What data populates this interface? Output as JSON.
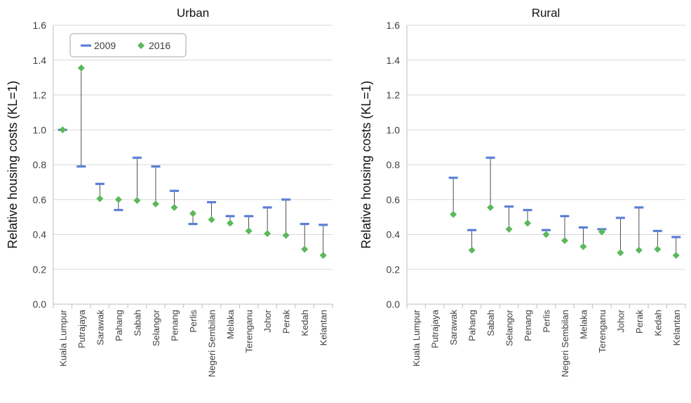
{
  "colors": {
    "series_2009": "#5b7fd6",
    "series_2016": "#5cb85c",
    "grid": "#d9d9d9",
    "axis": "#bfbfbf",
    "connector": "#222222"
  },
  "chart_data": [
    {
      "type": "dot-range",
      "title": "Urban",
      "ylabel": "Relative housing costs (KL=1)",
      "ylim": [
        0,
        1.6
      ],
      "yticks": [
        "0.0",
        "0.2",
        "0.4",
        "0.6",
        "0.8",
        "1.0",
        "1.2",
        "1.4",
        "1.6"
      ],
      "grid": true,
      "legend_position": "top-left",
      "categories": [
        "Kuala Lumpur",
        "Putrajaya",
        "Sarawak",
        "Pahang",
        "Sabah",
        "Selangor",
        "Penang",
        "Perlis",
        "Negeri Sembilan",
        "Melaka",
        "Terenganu",
        "Johor",
        "Perak",
        "Kedah",
        "Kelantan"
      ],
      "series": [
        {
          "name": "2009",
          "marker": "dash",
          "values": [
            1.0,
            0.79,
            0.69,
            0.54,
            0.84,
            0.79,
            0.65,
            0.46,
            0.585,
            0.505,
            0.505,
            0.555,
            0.6,
            0.46,
            0.455
          ]
        },
        {
          "name": "2016",
          "marker": "diamond",
          "values": [
            1.0,
            1.355,
            0.605,
            0.6,
            0.595,
            0.575,
            0.555,
            0.52,
            0.485,
            0.465,
            0.42,
            0.405,
            0.395,
            0.315,
            0.28
          ]
        }
      ]
    },
    {
      "type": "dot-range",
      "title": "Rural",
      "ylabel": "Relative housing costs (KL=1)",
      "ylim": [
        0,
        1.6
      ],
      "yticks": [
        "0.0",
        "0.2",
        "0.4",
        "0.6",
        "0.8",
        "1.0",
        "1.2",
        "1.4",
        "1.6"
      ],
      "grid": true,
      "categories": [
        "Kuala Lumpur",
        "Putrajaya",
        "Sarawak",
        "Pahang",
        "Sabah",
        "Selangor",
        "Penang",
        "Perlis",
        "Negeri Sembilan",
        "Melaka",
        "Terenganu",
        "Johor",
        "Perak",
        "Kedah",
        "Kelantan"
      ],
      "series": [
        {
          "name": "2009",
          "marker": "dash",
          "values": [
            null,
            null,
            0.725,
            0.425,
            0.84,
            0.56,
            0.54,
            0.425,
            0.505,
            0.44,
            0.43,
            0.495,
            0.555,
            0.42,
            0.385
          ]
        },
        {
          "name": "2016",
          "marker": "diamond",
          "values": [
            null,
            null,
            0.515,
            0.31,
            0.555,
            0.43,
            0.465,
            0.4,
            0.365,
            0.33,
            0.415,
            0.295,
            0.31,
            0.315,
            0.28
          ]
        }
      ]
    }
  ]
}
